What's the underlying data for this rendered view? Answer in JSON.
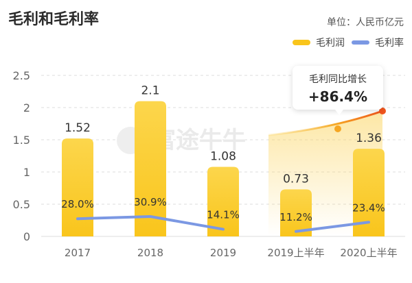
{
  "header": {
    "title": "毛利和毛利率",
    "unit": "单位：人民币亿元"
  },
  "legend": [
    {
      "label": "毛利润",
      "kind": "bar",
      "color": "#f9c51c"
    },
    {
      "label": "毛利率",
      "kind": "line",
      "color": "#7b98e3"
    }
  ],
  "watermark": "富途牛牛",
  "callout": {
    "label": "毛利同比增长",
    "value": "+86.4%"
  },
  "colors": {
    "bar": "#f9c51c",
    "bar_top": "#fcd64c",
    "line": "#7b98e3",
    "growth_line": "#f5a623",
    "growth_end": "#f0541c",
    "grid": "#dddddd",
    "axis_text": "#666666"
  },
  "chart_data": {
    "type": "bar",
    "categories": [
      "2017",
      "2018",
      "2019",
      "2019上半年",
      "2020上半年"
    ],
    "ylim": [
      0,
      2.5
    ],
    "yticks": [
      "0",
      "0.5",
      "1",
      "1.5",
      "2",
      "2.5"
    ],
    "series": [
      {
        "name": "毛利润",
        "type": "bar",
        "values": [
          1.52,
          2.1,
          1.08,
          0.73,
          1.36
        ],
        "labels": [
          "1.52",
          "2.1",
          "1.08",
          "0.73",
          "1.36"
        ]
      },
      {
        "name": "毛利率",
        "type": "line",
        "values": [
          28.0,
          30.9,
          14.1,
          11.2,
          23.4
        ],
        "labels": [
          "28.0%",
          "30.9%",
          "14.1%",
          "11.2%",
          "23.4%"
        ],
        "breaks_after": [
          2
        ]
      }
    ]
  }
}
